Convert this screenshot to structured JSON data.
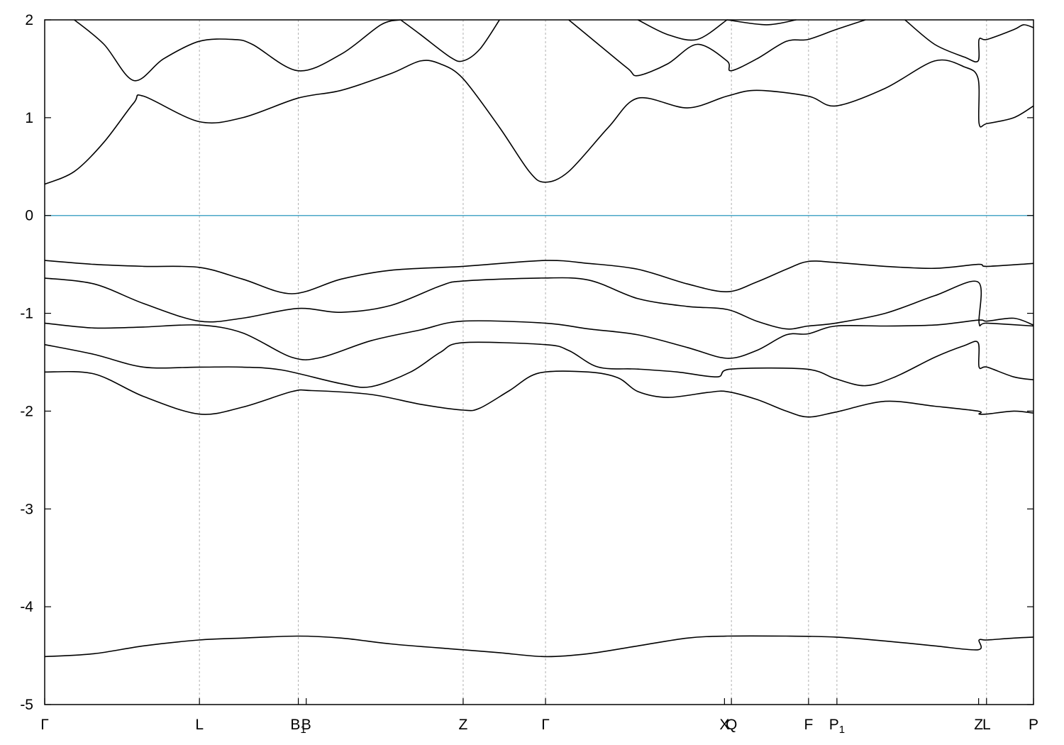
{
  "chart_data": {
    "type": "line",
    "title": "",
    "xlabel": "",
    "ylabel": "",
    "ylim": [
      -5,
      2
    ],
    "xlim": [
      0,
      1
    ],
    "y_ticks": [
      "2",
      "1",
      "0",
      "-1",
      "-2",
      "-3",
      "-4",
      "-5"
    ],
    "y_tick_values": [
      2,
      1,
      0,
      -1,
      -2,
      -3,
      -4,
      -5
    ],
    "x_ticks": [
      {
        "label": "Γ",
        "sub": "",
        "x": 0.0
      },
      {
        "label": "L",
        "sub": "",
        "x": 0.1565
      },
      {
        "label": "B",
        "sub": "1",
        "x": 0.2565
      },
      {
        "label": "B",
        "sub": "",
        "x": 0.2645
      },
      {
        "label": "Z",
        "sub": "",
        "x": 0.4232
      },
      {
        "label": "Γ",
        "sub": "",
        "x": 0.5065
      },
      {
        "label": "X",
        "sub": "",
        "x": 0.6875
      },
      {
        "label": "Q",
        "sub": "",
        "x": 0.6945
      },
      {
        "label": "F",
        "sub": "",
        "x": 0.7725
      },
      {
        "label": "P",
        "sub": "1",
        "x": 0.8012
      },
      {
        "label": "Z",
        "sub": "",
        "x": 0.9445
      },
      {
        "label": "L",
        "sub": "",
        "x": 0.9525
      },
      {
        "label": "P",
        "sub": "",
        "x": 1.0
      }
    ],
    "vlines_at": [
      0.1565,
      0.2565,
      0.4232,
      0.5065,
      0.6945,
      0.7725,
      0.8012,
      0.9525
    ],
    "fermi_level": 0,
    "fermi_color": "#4BA7C7",
    "grid": false,
    "series": [
      {
        "values": [
          [
            0.0,
            -4.51
          ],
          [
            0.05,
            -4.48
          ],
          [
            0.1,
            -4.4
          ],
          [
            0.156,
            -4.34
          ],
          [
            0.2,
            -4.32
          ],
          [
            0.256,
            -4.3
          ],
          [
            0.3,
            -4.32
          ],
          [
            0.35,
            -4.38
          ],
          [
            0.41,
            -4.43
          ],
          [
            0.423,
            -4.44
          ],
          [
            0.46,
            -4.47
          ],
          [
            0.506,
            -4.51
          ],
          [
            0.55,
            -4.48
          ],
          [
            0.6,
            -4.4
          ],
          [
            0.65,
            -4.32
          ],
          [
            0.69,
            -4.3
          ],
          [
            0.75,
            -4.3
          ],
          [
            0.8,
            -4.31
          ],
          [
            0.85,
            -4.35
          ],
          [
            0.9,
            -4.4
          ],
          [
            0.944,
            -4.44
          ],
          [
            0.945,
            -4.34
          ],
          [
            0.953,
            -4.34
          ],
          [
            0.98,
            -4.32
          ],
          [
            1.0,
            -4.31
          ]
        ]
      },
      {
        "values": [
          [
            0.0,
            -1.6
          ],
          [
            0.05,
            -1.62
          ],
          [
            0.1,
            -1.85
          ],
          [
            0.156,
            -2.03
          ],
          [
            0.2,
            -1.96
          ],
          [
            0.25,
            -1.8
          ],
          [
            0.27,
            -1.79
          ],
          [
            0.33,
            -1.83
          ],
          [
            0.38,
            -1.93
          ],
          [
            0.423,
            -1.99
          ],
          [
            0.44,
            -1.97
          ],
          [
            0.47,
            -1.79
          ],
          [
            0.5,
            -1.61
          ],
          [
            0.55,
            -1.6
          ],
          [
            0.58,
            -1.66
          ],
          [
            0.6,
            -1.8
          ],
          [
            0.63,
            -1.86
          ],
          [
            0.67,
            -1.81
          ],
          [
            0.69,
            -1.8
          ],
          [
            0.72,
            -1.88
          ],
          [
            0.75,
            -2.0
          ],
          [
            0.772,
            -2.06
          ],
          [
            0.8,
            -2.01
          ],
          [
            0.85,
            -1.9
          ],
          [
            0.9,
            -1.95
          ],
          [
            0.944,
            -2.0
          ],
          [
            0.945,
            -2.03
          ],
          [
            0.953,
            -2.03
          ],
          [
            0.98,
            -2.0
          ],
          [
            1.0,
            -2.02
          ]
        ]
      },
      {
        "values": [
          [
            0.0,
            -1.32
          ],
          [
            0.05,
            -1.42
          ],
          [
            0.1,
            -1.55
          ],
          [
            0.156,
            -1.55
          ],
          [
            0.2,
            -1.55
          ],
          [
            0.24,
            -1.58
          ],
          [
            0.3,
            -1.72
          ],
          [
            0.33,
            -1.75
          ],
          [
            0.37,
            -1.6
          ],
          [
            0.4,
            -1.4
          ],
          [
            0.423,
            -1.3
          ],
          [
            0.506,
            -1.32
          ],
          [
            0.53,
            -1.38
          ],
          [
            0.56,
            -1.55
          ],
          [
            0.6,
            -1.57
          ],
          [
            0.64,
            -1.6
          ],
          [
            0.68,
            -1.65
          ],
          [
            0.694,
            -1.57
          ],
          [
            0.77,
            -1.57
          ],
          [
            0.8,
            -1.67
          ],
          [
            0.83,
            -1.74
          ],
          [
            0.86,
            -1.65
          ],
          [
            0.9,
            -1.45
          ],
          [
            0.93,
            -1.33
          ],
          [
            0.944,
            -1.3
          ],
          [
            0.945,
            -1.55
          ],
          [
            0.953,
            -1.55
          ],
          [
            0.98,
            -1.65
          ],
          [
            1.0,
            -1.68
          ]
        ]
      },
      {
        "values": [
          [
            0.0,
            -1.1
          ],
          [
            0.05,
            -1.15
          ],
          [
            0.1,
            -1.14
          ],
          [
            0.156,
            -1.12
          ],
          [
            0.2,
            -1.2
          ],
          [
            0.25,
            -1.45
          ],
          [
            0.28,
            -1.45
          ],
          [
            0.33,
            -1.28
          ],
          [
            0.38,
            -1.17
          ],
          [
            0.423,
            -1.08
          ],
          [
            0.506,
            -1.1
          ],
          [
            0.55,
            -1.16
          ],
          [
            0.6,
            -1.22
          ],
          [
            0.65,
            -1.35
          ],
          [
            0.69,
            -1.46
          ],
          [
            0.72,
            -1.38
          ],
          [
            0.75,
            -1.22
          ],
          [
            0.772,
            -1.21
          ],
          [
            0.8,
            -1.13
          ],
          [
            0.85,
            -1.13
          ],
          [
            0.9,
            -1.12
          ],
          [
            0.944,
            -1.07
          ],
          [
            0.953,
            -1.08
          ],
          [
            0.98,
            -1.05
          ],
          [
            1.0,
            -1.12
          ]
        ]
      },
      {
        "values": [
          [
            0.0,
            -0.64
          ],
          [
            0.05,
            -0.7
          ],
          [
            0.1,
            -0.9
          ],
          [
            0.156,
            -1.08
          ],
          [
            0.2,
            -1.05
          ],
          [
            0.256,
            -0.95
          ],
          [
            0.3,
            -0.99
          ],
          [
            0.35,
            -0.92
          ],
          [
            0.4,
            -0.72
          ],
          [
            0.423,
            -0.67
          ],
          [
            0.5,
            -0.64
          ],
          [
            0.55,
            -0.66
          ],
          [
            0.6,
            -0.85
          ],
          [
            0.65,
            -0.93
          ],
          [
            0.69,
            -0.96
          ],
          [
            0.72,
            -1.08
          ],
          [
            0.75,
            -1.16
          ],
          [
            0.772,
            -1.13
          ],
          [
            0.8,
            -1.1
          ],
          [
            0.85,
            -1.0
          ],
          [
            0.9,
            -0.82
          ],
          [
            0.944,
            -0.68
          ],
          [
            0.945,
            -1.1
          ],
          [
            0.953,
            -1.1
          ],
          [
            1.0,
            -1.13
          ]
        ]
      },
      {
        "values": [
          [
            0.0,
            -0.46
          ],
          [
            0.05,
            -0.5
          ],
          [
            0.1,
            -0.52
          ],
          [
            0.156,
            -0.53
          ],
          [
            0.2,
            -0.65
          ],
          [
            0.25,
            -0.8
          ],
          [
            0.3,
            -0.65
          ],
          [
            0.35,
            -0.56
          ],
          [
            0.423,
            -0.52
          ],
          [
            0.506,
            -0.46
          ],
          [
            0.55,
            -0.49
          ],
          [
            0.6,
            -0.55
          ],
          [
            0.65,
            -0.7
          ],
          [
            0.69,
            -0.78
          ],
          [
            0.72,
            -0.68
          ],
          [
            0.75,
            -0.55
          ],
          [
            0.772,
            -0.47
          ],
          [
            0.8,
            -0.48
          ],
          [
            0.85,
            -0.52
          ],
          [
            0.9,
            -0.54
          ],
          [
            0.944,
            -0.5
          ],
          [
            0.953,
            -0.52
          ],
          [
            1.0,
            -0.49
          ]
        ]
      },
      {
        "values": [
          [
            0.0,
            0.32
          ],
          [
            0.03,
            0.45
          ],
          [
            0.06,
            0.75
          ],
          [
            0.09,
            1.15
          ],
          [
            0.1,
            1.22
          ],
          [
            0.156,
            0.96
          ],
          [
            0.2,
            1.0
          ],
          [
            0.256,
            1.2
          ],
          [
            0.3,
            1.28
          ],
          [
            0.35,
            1.45
          ],
          [
            0.38,
            1.58
          ],
          [
            0.4,
            1.55
          ],
          [
            0.423,
            1.4
          ],
          [
            0.46,
            0.9
          ],
          [
            0.49,
            0.45
          ],
          [
            0.506,
            0.34
          ],
          [
            0.53,
            0.45
          ],
          [
            0.57,
            0.9
          ],
          [
            0.6,
            1.2
          ],
          [
            0.65,
            1.1
          ],
          [
            0.69,
            1.22
          ],
          [
            0.72,
            1.28
          ],
          [
            0.772,
            1.22
          ],
          [
            0.8,
            1.12
          ],
          [
            0.85,
            1.3
          ],
          [
            0.9,
            1.58
          ],
          [
            0.93,
            1.52
          ],
          [
            0.944,
            1.4
          ],
          [
            0.945,
            0.94
          ],
          [
            0.953,
            0.94
          ],
          [
            0.98,
            1.0
          ],
          [
            1.0,
            1.12
          ]
        ]
      },
      {
        "values": [
          [
            0.03,
            2.0
          ],
          [
            0.06,
            1.75
          ],
          [
            0.09,
            1.38
          ],
          [
            0.12,
            1.6
          ],
          [
            0.156,
            1.78
          ],
          [
            0.19,
            1.8
          ],
          [
            0.21,
            1.75
          ],
          [
            0.256,
            1.48
          ],
          [
            0.3,
            1.65
          ],
          [
            0.34,
            1.95
          ],
          [
            0.36,
            2.0
          ]
        ]
      },
      {
        "values": [
          [
            0.36,
            2.0
          ],
          [
            0.38,
            1.85
          ],
          [
            0.41,
            1.62
          ],
          [
            0.423,
            1.58
          ],
          [
            0.44,
            1.7
          ],
          [
            0.46,
            2.0
          ]
        ]
      },
      {
        "values": [
          [
            0.53,
            2.0
          ],
          [
            0.56,
            1.75
          ],
          [
            0.59,
            1.5
          ],
          [
            0.6,
            1.43
          ],
          [
            0.63,
            1.55
          ],
          [
            0.66,
            1.75
          ],
          [
            0.69,
            1.58
          ],
          [
            0.694,
            1.48
          ],
          [
            0.72,
            1.6
          ],
          [
            0.75,
            1.78
          ],
          [
            0.772,
            1.8
          ],
          [
            0.8,
            1.9
          ],
          [
            0.83,
            2.0
          ]
        ]
      },
      {
        "values": [
          [
            0.6,
            2.0
          ],
          [
            0.63,
            1.85
          ],
          [
            0.66,
            1.8
          ],
          [
            0.69,
            2.0
          ]
        ]
      },
      {
        "values": [
          [
            0.69,
            2.0
          ],
          [
            0.73,
            1.95
          ],
          [
            0.76,
            2.0
          ]
        ]
      },
      {
        "values": [
          [
            0.87,
            2.0
          ],
          [
            0.9,
            1.75
          ],
          [
            0.93,
            1.62
          ],
          [
            0.944,
            1.58
          ],
          [
            0.945,
            1.8
          ],
          [
            0.953,
            1.8
          ],
          [
            0.98,
            1.9
          ],
          [
            0.99,
            1.95
          ],
          [
            1.0,
            1.92
          ]
        ]
      }
    ]
  }
}
